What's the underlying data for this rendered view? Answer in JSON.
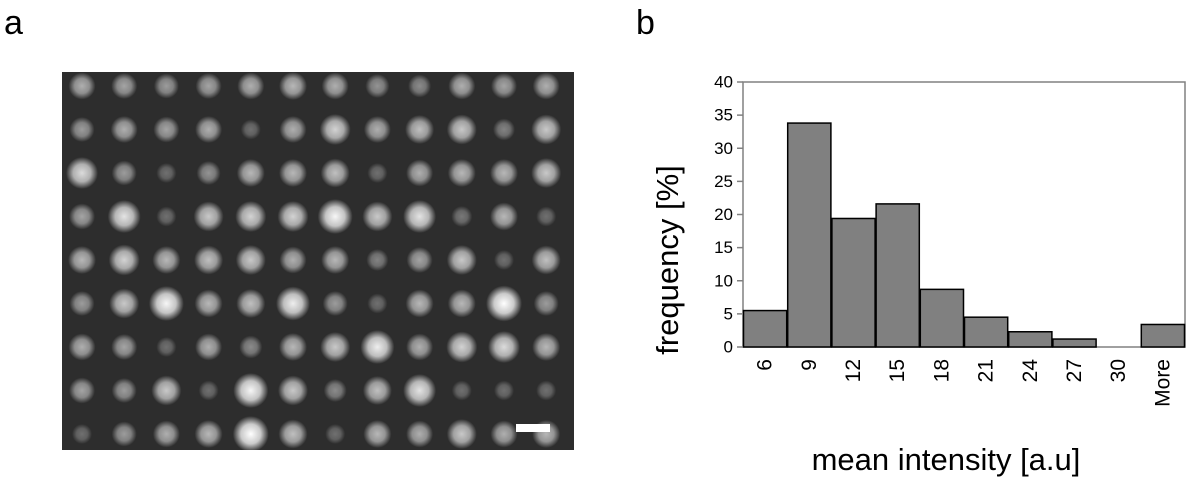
{
  "panels": {
    "a": {
      "label": "a"
    },
    "b": {
      "label": "b"
    }
  },
  "micrograph": {
    "rows": 9,
    "cols": 12,
    "background_color": "#2d2d2d",
    "spot_color": "#ffffff",
    "brightness": [
      [
        0.55,
        0.5,
        0.45,
        0.5,
        0.55,
        0.6,
        0.55,
        0.4,
        0.35,
        0.55,
        0.5,
        0.55
      ],
      [
        0.45,
        0.55,
        0.5,
        0.55,
        0.2,
        0.55,
        0.75,
        0.55,
        0.65,
        0.7,
        0.3,
        0.7
      ],
      [
        0.8,
        0.45,
        0.2,
        0.4,
        0.6,
        0.6,
        0.65,
        0.2,
        0.55,
        0.6,
        0.6,
        0.7
      ],
      [
        0.5,
        0.85,
        0.2,
        0.7,
        0.75,
        0.75,
        0.95,
        0.7,
        0.85,
        0.25,
        0.6,
        0.2
      ],
      [
        0.6,
        0.75,
        0.6,
        0.65,
        0.7,
        0.55,
        0.6,
        0.3,
        0.5,
        0.7,
        0.2,
        0.65
      ],
      [
        0.45,
        0.7,
        0.95,
        0.6,
        0.65,
        0.9,
        0.45,
        0.2,
        0.6,
        0.6,
        1.0,
        0.45
      ],
      [
        0.55,
        0.5,
        0.2,
        0.55,
        0.35,
        0.6,
        0.7,
        0.9,
        0.55,
        0.75,
        0.8,
        0.6
      ],
      [
        0.5,
        0.45,
        0.7,
        0.2,
        0.95,
        0.7,
        0.35,
        0.65,
        0.85,
        0.2,
        0.2,
        0.2
      ],
      [
        0.2,
        0.45,
        0.55,
        0.6,
        1.0,
        0.65,
        0.2,
        0.6,
        0.55,
        0.7,
        0.55,
        0.6
      ]
    ],
    "scale_bar": {
      "color": "#ffffff"
    }
  },
  "chart_data": {
    "type": "bar",
    "xlabel": "mean intensity [a.u]",
    "ylabel": "frequency  [%]",
    "categories": [
      "6",
      "9",
      "12",
      "15",
      "18",
      "21",
      "24",
      "27",
      "30",
      "More"
    ],
    "values": [
      5.5,
      33.8,
      19.4,
      21.6,
      8.7,
      4.5,
      2.3,
      1.2,
      0,
      3.4
    ],
    "ylim": [
      0,
      40
    ],
    "yticks": [
      0,
      5,
      10,
      15,
      20,
      25,
      30,
      35,
      40
    ],
    "grid": false,
    "bar_color": "#808080",
    "bar_edge_color": "#000000",
    "axis_color": "#808080"
  }
}
